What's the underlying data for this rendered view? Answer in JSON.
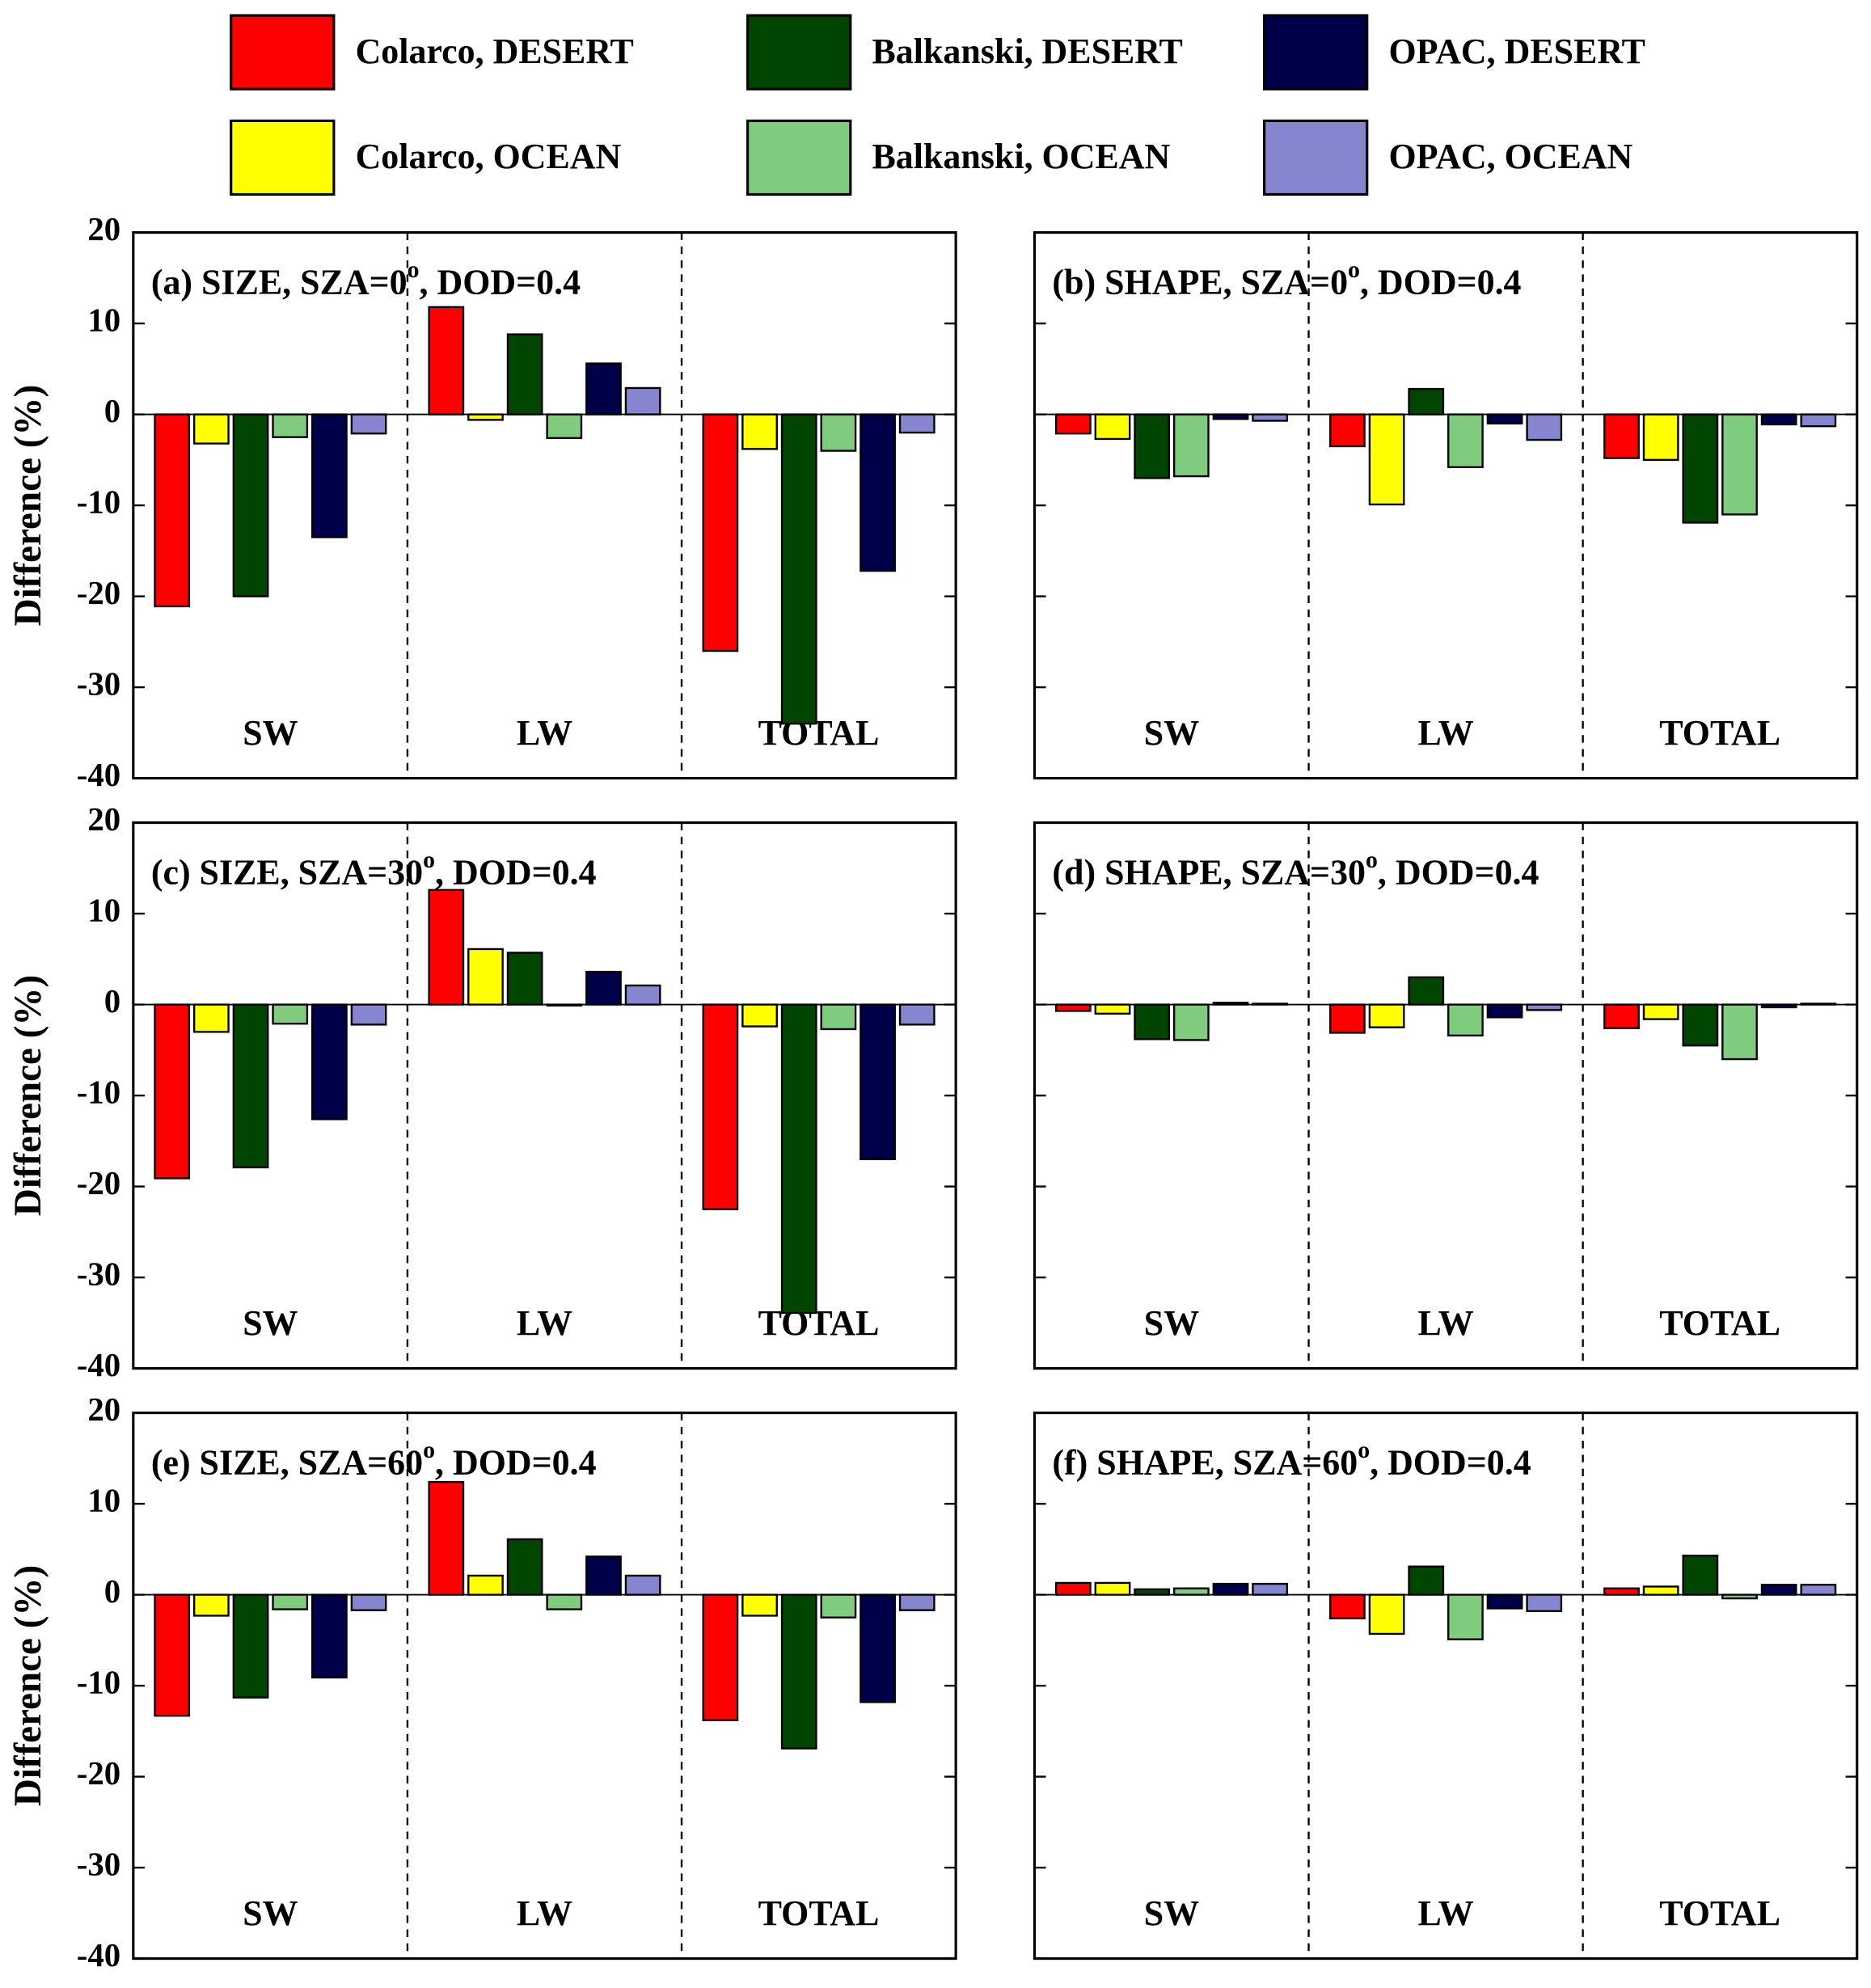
{
  "legend_names": [
    "Colarco, DESERT",
    "Balkanski, DESERT",
    "OPAC, DESERT",
    "Colarco, OCEAN",
    "Balkanski, OCEAN",
    "OPAC, OCEAN"
  ],
  "chart_data": [
    {
      "type": "bar",
      "title": {
        "text": "(a) SIZE, SZA=0",
        "superscript": "o",
        "after": ", DOD=0.4"
      },
      "ylabel": "Difference (%)",
      "categories": [
        "SW",
        "LW",
        "TOTAL"
      ],
      "ylim": [
        -40,
        20
      ],
      "yticks": [
        -40,
        -30,
        -20,
        -10,
        0,
        10,
        20
      ],
      "series": [
        {
          "color": "#ff0000",
          "values": [
            -21.1,
            11.8,
            -26
          ]
        },
        {
          "color": "#ffff00",
          "values": [
            -3.2,
            -0.6,
            -3.8
          ]
        },
        {
          "color": "#004500",
          "values": [
            -20,
            8.8,
            -34
          ]
        },
        {
          "color": "#7fcc7f",
          "values": [
            -2.5,
            -2.6,
            -4
          ]
        },
        {
          "color": "#00004a",
          "values": [
            -13.5,
            5.6,
            -17.2
          ]
        },
        {
          "color": "#8585d0",
          "values": [
            -2.1,
            2.9,
            -2
          ]
        }
      ]
    },
    {
      "type": "bar",
      "title": {
        "text": "(b) SHAPE, SZA=0",
        "superscript": "o",
        "after": ", DOD=0.4"
      },
      "categories": [
        "SW",
        "LW",
        "TOTAL"
      ],
      "ylim": [
        -40,
        20
      ],
      "yticks": [
        -40,
        -30,
        -20,
        -10,
        0,
        10,
        20
      ],
      "ytick_labels": false,
      "series": [
        {
          "color": "#ff0000",
          "values": [
            -2.1,
            -3.5,
            -4.8
          ]
        },
        {
          "color": "#ffff00",
          "values": [
            -2.7,
            -9.9,
            -5
          ]
        },
        {
          "color": "#004500",
          "values": [
            -7,
            2.8,
            -11.9
          ]
        },
        {
          "color": "#7fcc7f",
          "values": [
            -6.8,
            -5.8,
            -11
          ]
        },
        {
          "color": "#00004a",
          "values": [
            -0.5,
            -1,
            -1.1
          ]
        },
        {
          "color": "#8585d0",
          "values": [
            -0.7,
            -2.8,
            -1.3
          ]
        }
      ]
    },
    {
      "type": "bar",
      "title": {
        "text": "(c) SIZE, SZA=30",
        "superscript": "o",
        "after": ", DOD=0.4"
      },
      "ylabel": "Difference (%)",
      "categories": [
        "SW",
        "LW",
        "TOTAL"
      ],
      "ylim": [
        -40,
        20
      ],
      "yticks": [
        -40,
        -30,
        -20,
        -10,
        0,
        10,
        20
      ],
      "series": [
        {
          "color": "#ff0000",
          "values": [
            -19.1,
            12.6,
            -22.5
          ]
        },
        {
          "color": "#ffff00",
          "values": [
            -3,
            6.1,
            -2.4
          ]
        },
        {
          "color": "#004500",
          "values": [
            -17.9,
            5.7,
            -33.9
          ]
        },
        {
          "color": "#7fcc7f",
          "values": [
            -2.1,
            -0.1,
            -2.7
          ]
        },
        {
          "color": "#00004a",
          "values": [
            -12.6,
            3.6,
            -17
          ]
        },
        {
          "color": "#8585d0",
          "values": [
            -2.2,
            2.1,
            -2.2
          ]
        }
      ]
    },
    {
      "type": "bar",
      "title": {
        "text": "(d) SHAPE, SZA=30",
        "superscript": "o",
        "after": ", DOD=0.4"
      },
      "categories": [
        "SW",
        "LW",
        "TOTAL"
      ],
      "ylim": [
        -40,
        20
      ],
      "yticks": [
        -40,
        -30,
        -20,
        -10,
        0,
        10,
        20
      ],
      "ytick_labels": false,
      "series": [
        {
          "color": "#ff0000",
          "values": [
            -0.7,
            -3.1,
            -2.6
          ]
        },
        {
          "color": "#ffff00",
          "values": [
            -1,
            -2.5,
            -1.6
          ]
        },
        {
          "color": "#004500",
          "values": [
            -3.8,
            3,
            -4.5
          ]
        },
        {
          "color": "#7fcc7f",
          "values": [
            -3.9,
            -3.4,
            -6
          ]
        },
        {
          "color": "#00004a",
          "values": [
            0.2,
            -1.4,
            -0.3
          ]
        },
        {
          "color": "#8585d0",
          "values": [
            0.1,
            -0.6,
            0.1
          ]
        }
      ]
    },
    {
      "type": "bar",
      "title": {
        "text": "(e) SIZE, SZA=60",
        "superscript": "o",
        "after": ", DOD=0.4"
      },
      "ylabel": "Difference (%)",
      "categories": [
        "SW",
        "LW",
        "TOTAL"
      ],
      "ylim": [
        -40,
        20
      ],
      "yticks": [
        -40,
        -30,
        -20,
        -10,
        0,
        10,
        20
      ],
      "series": [
        {
          "color": "#ff0000",
          "values": [
            -13.3,
            12.4,
            -13.8
          ]
        },
        {
          "color": "#ffff00",
          "values": [
            -2.3,
            2.1,
            -2.3
          ]
        },
        {
          "color": "#004500",
          "values": [
            -11.3,
            6.1,
            -16.9
          ]
        },
        {
          "color": "#7fcc7f",
          "values": [
            -1.6,
            -1.6,
            -2.5
          ]
        },
        {
          "color": "#00004a",
          "values": [
            -9.1,
            4.2,
            -11.8
          ]
        },
        {
          "color": "#8585d0",
          "values": [
            -1.7,
            2.1,
            -1.7
          ]
        }
      ]
    },
    {
      "type": "bar",
      "title": {
        "text": "(f) SHAPE, SZA=60",
        "superscript": "o",
        "after": ", DOD=0.4"
      },
      "categories": [
        "SW",
        "LW",
        "TOTAL"
      ],
      "ylim": [
        -40,
        20
      ],
      "yticks": [
        -40,
        -30,
        -20,
        -10,
        0,
        10,
        20
      ],
      "ytick_labels": false,
      "series": [
        {
          "color": "#ff0000",
          "values": [
            1.3,
            -2.6,
            0.7
          ]
        },
        {
          "color": "#ffff00",
          "values": [
            1.3,
            -4.3,
            0.9
          ]
        },
        {
          "color": "#004500",
          "values": [
            0.6,
            3.1,
            4.3
          ]
        },
        {
          "color": "#7fcc7f",
          "values": [
            0.7,
            -4.9,
            -0.4
          ]
        },
        {
          "color": "#00004a",
          "values": [
            1.2,
            -1.5,
            1.1
          ]
        },
        {
          "color": "#8585d0",
          "values": [
            1.2,
            -1.8,
            1.1
          ]
        }
      ]
    }
  ]
}
